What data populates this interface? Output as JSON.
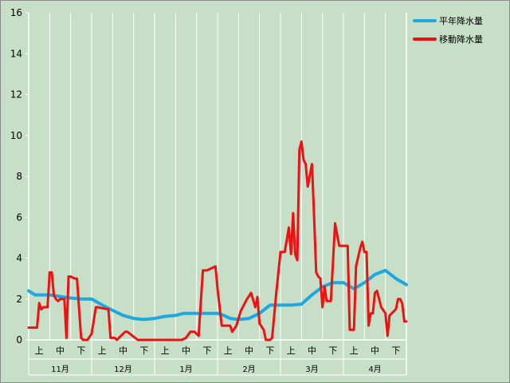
{
  "chart_data": {
    "type": "line",
    "title": "",
    "xlabel": "",
    "ylabel": "",
    "ylim": [
      0,
      16
    ],
    "yticks": [
      "0",
      "2",
      "4",
      "6",
      "8",
      "10",
      "12",
      "14",
      "16"
    ],
    "grid": "vertical",
    "legend_position": "top-right",
    "months": [
      "11月",
      "12月",
      "1月",
      "2月",
      "3月",
      "4月"
    ],
    "periods": [
      "上",
      "中",
      "下"
    ],
    "x_range": [
      0,
      18
    ],
    "series": [
      {
        "name": "平年降水量",
        "color": "#1fa8e0",
        "x": [
          0,
          0.3,
          1,
          2,
          2.5,
          3,
          3.7,
          4.5,
          5,
          5.5,
          6,
          6.5,
          7,
          7.4,
          8,
          9,
          9.3,
          9.6,
          10,
          10.5,
          11,
          11.5,
          11.9,
          12.5,
          13,
          13.5,
          14,
          14.5,
          15,
          15.5,
          16,
          16.5,
          17,
          17.5,
          18
        ],
        "values": [
          2.4,
          2.2,
          2.2,
          2.05,
          2.0,
          2.0,
          1.6,
          1.2,
          1.05,
          1.0,
          1.05,
          1.15,
          1.2,
          1.3,
          1.3,
          1.3,
          1.2,
          1.05,
          1.0,
          1.05,
          1.3,
          1.7,
          1.7,
          1.7,
          1.75,
          2.2,
          2.6,
          2.8,
          2.8,
          2.5,
          2.8,
          3.2,
          3.4,
          3.0,
          2.7
        ]
      },
      {
        "name": "移動降水量",
        "color": "#ee1111",
        "x": [
          0,
          0.4,
          0.5,
          0.6,
          0.7,
          0.9,
          1.0,
          1.1,
          1.2,
          1.3,
          1.4,
          1.5,
          1.7,
          1.8,
          1.9,
          2.0,
          2.2,
          2.3,
          2.5,
          2.6,
          2.7,
          2.8,
          3.0,
          3.2,
          3.3,
          3.5,
          3.8,
          3.9,
          4.1,
          4.2,
          4.6,
          4.7,
          5.2,
          5.4,
          5.6,
          5.8,
          6.0,
          6.2,
          7.3,
          7.5,
          7.7,
          7.9,
          8.1,
          8.3,
          8.5,
          8.9,
          9.0,
          9.2,
          9.4,
          9.6,
          9.7,
          9.9,
          10.1,
          10.4,
          10.6,
          10.8,
          10.9,
          11.0,
          11.2,
          11.3,
          11.5,
          11.6,
          11.8,
          12.0,
          12.2,
          12.4,
          12.5,
          12.6,
          12.7,
          12.8,
          12.9,
          13.0,
          13.1,
          13.2,
          13.3,
          13.5,
          13.6,
          13.7,
          13.8,
          13.9,
          14.0,
          14.1,
          14.2,
          14.4,
          14.6,
          14.8,
          14.9,
          15.0,
          15.2,
          15.3,
          15.5,
          15.6,
          15.8,
          15.9,
          16.0,
          16.1,
          16.2,
          16.3,
          16.4,
          16.5,
          16.6,
          16.8,
          17.0,
          17.1,
          17.2,
          17.3,
          17.5,
          17.6,
          17.7,
          17.8,
          17.9,
          18.0
        ],
        "values": [
          0.6,
          0.6,
          1.8,
          1.5,
          1.6,
          1.6,
          3.3,
          3.3,
          2.2,
          2.0,
          1.9,
          2.0,
          2.0,
          0.1,
          3.1,
          3.1,
          3.0,
          3.0,
          0.1,
          0.0,
          0.0,
          0.0,
          0.3,
          1.6,
          1.6,
          1.55,
          1.5,
          0.1,
          0.1,
          0.0,
          0.4,
          0.4,
          0.0,
          0.0,
          0.0,
          0.0,
          0.0,
          0.0,
          0.0,
          0.1,
          0.4,
          0.4,
          0.2,
          3.4,
          3.4,
          3.6,
          2.5,
          0.7,
          0.7,
          0.7,
          0.4,
          0.7,
          1.4,
          2.0,
          2.3,
          1.6,
          2.1,
          0.8,
          0.5,
          0.0,
          0.0,
          0.1,
          2.3,
          4.3,
          4.3,
          5.5,
          4.2,
          6.2,
          4.2,
          3.9,
          9.3,
          9.7,
          8.8,
          8.6,
          7.5,
          8.6,
          6.1,
          3.3,
          3.1,
          3.0,
          1.6,
          2.6,
          1.9,
          1.9,
          5.7,
          4.6,
          4.6,
          4.6,
          4.6,
          0.5,
          0.5,
          3.6,
          4.5,
          4.8,
          4.3,
          4.3,
          0.7,
          1.3,
          1.3,
          2.3,
          2.4,
          1.6,
          1.3,
          0.2,
          1.2,
          1.3,
          1.5,
          2.0,
          2.0,
          1.8,
          0.9,
          0.9
        ]
      }
    ]
  }
}
